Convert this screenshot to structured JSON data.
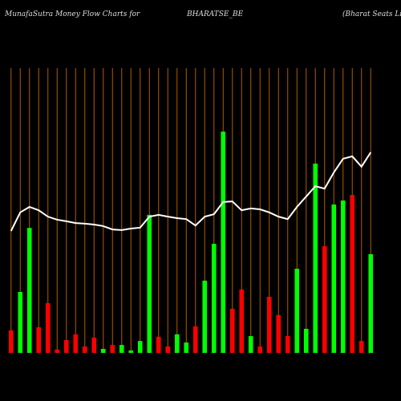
{
  "chart_data": {
    "type": "bar",
    "title": "MunafaSutra  Money Flow  Charts for",
    "symbol": "BHARATSE_BE",
    "company": "(Bharat Seats Limit",
    "ylim": [
      0,
      100
    ],
    "background": "#000000",
    "grid_color": "#b35c00",
    "xgrid": true,
    "series": [
      {
        "name": "Money Flow",
        "kind": "bar",
        "values": [
          7.4,
          20,
          41,
          8.4,
          16.3,
          1.1,
          4.2,
          6.1,
          2.1,
          5,
          1.3,
          2.6,
          2.6,
          0.8,
          3.9,
          45.3,
          5.3,
          2.1,
          6.1,
          3.4,
          8.7,
          23.7,
          35.8,
          72.6,
          14.5,
          20.8,
          5.5,
          2.1,
          18.4,
          12.4,
          5.5,
          27.6,
          7.9,
          62.1,
          35,
          48.7,
          50,
          51.8,
          3.9,
          32.4
        ],
        "colors": [
          "#ff0000",
          "#00ff00",
          "#00ff00",
          "#ff0000",
          "#ff0000",
          "#ff0000",
          "#ff0000",
          "#ff0000",
          "#ff0000",
          "#ff0000",
          "#00ff00",
          "#ff0000",
          "#00ff00",
          "#00ff00",
          "#00ff00",
          "#00ff00",
          "#ff0000",
          "#ff0000",
          "#00ff00",
          "#00ff00",
          "#ff0000",
          "#00ff00",
          "#00ff00",
          "#00ff00",
          "#ff0000",
          "#ff0000",
          "#00ff00",
          "#ff0000",
          "#ff0000",
          "#ff0000",
          "#ff0000",
          "#00ff00",
          "#00ff00",
          "#00ff00",
          "#ff0000",
          "#00ff00",
          "#00ff00",
          "#ff0000",
          "#ff0000",
          "#00ff00"
        ]
      },
      {
        "name": "Price",
        "kind": "line",
        "color": "#ffffff",
        "values": [
          40,
          46.1,
          47.9,
          46.8,
          44.7,
          43.7,
          43.2,
          42.6,
          42.4,
          42.1,
          41.6,
          40.5,
          40.3,
          40.8,
          41.1,
          44.7,
          45.3,
          44.7,
          44.2,
          43.9,
          41.8,
          44.7,
          45.5,
          49.5,
          49.7,
          46.8,
          47.4,
          47.1,
          46.1,
          44.7,
          43.9,
          47.9,
          51.3,
          54.7,
          53.9,
          59.2,
          63.7,
          64.5,
          61.1,
          65.8
        ]
      }
    ]
  }
}
